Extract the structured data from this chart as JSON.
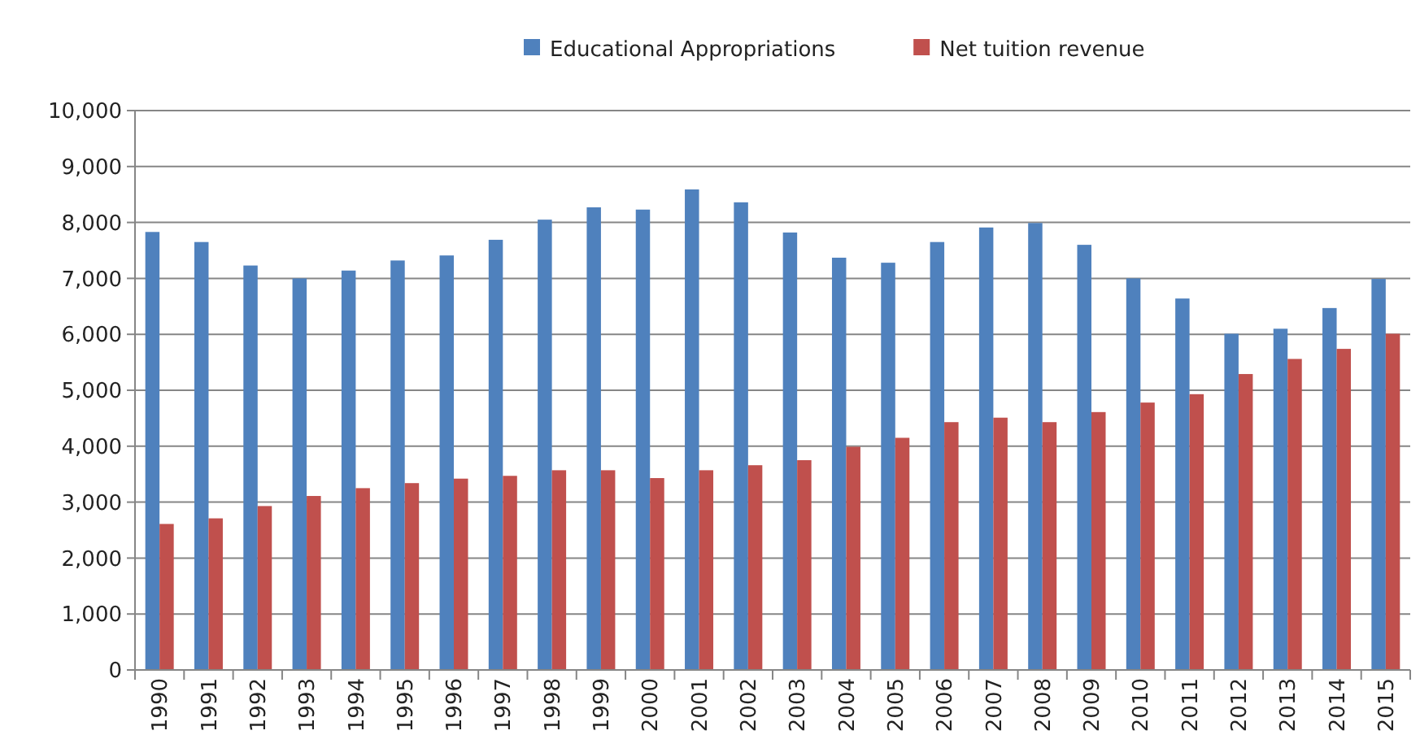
{
  "chart_data": {
    "type": "bar",
    "categories": [
      "1990",
      "1991",
      "1992",
      "1993",
      "1994",
      "1995",
      "1996",
      "1997",
      "1998",
      "1999",
      "2000",
      "2001",
      "2002",
      "2003",
      "2004",
      "2005",
      "2006",
      "2007",
      "2008",
      "2009",
      "2010",
      "2011",
      "2012",
      "2013",
      "2014",
      "2015"
    ],
    "series": [
      {
        "name": "Educational Appropriations",
        "color": "#4f81bd",
        "values": [
          7830,
          7650,
          7230,
          7000,
          7140,
          7320,
          7410,
          7690,
          8050,
          8270,
          8230,
          8590,
          8360,
          7820,
          7370,
          7280,
          7650,
          7910,
          7990,
          7600,
          7000,
          6640,
          6010,
          6100,
          6470,
          6990
        ]
      },
      {
        "name": "Net tuition revenue",
        "color": "#c0504d",
        "values": [
          2610,
          2710,
          2930,
          3110,
          3250,
          3340,
          3420,
          3470,
          3570,
          3570,
          3430,
          3570,
          3660,
          3750,
          3990,
          4150,
          4430,
          4510,
          4430,
          4610,
          4780,
          4930,
          5290,
          5560,
          5740,
          6010
        ]
      }
    ],
    "ylim": [
      0,
      10000
    ],
    "yticks": [
      {
        "value": 0,
        "label": "0"
      },
      {
        "value": 1000,
        "label": "1,000"
      },
      {
        "value": 2000,
        "label": "2,000"
      },
      {
        "value": 3000,
        "label": "3,000"
      },
      {
        "value": 4000,
        "label": "4,000"
      },
      {
        "value": 5000,
        "label": "5,000"
      },
      {
        "value": 6000,
        "label": "6,000"
      },
      {
        "value": 7000,
        "label": "7,000"
      },
      {
        "value": 8000,
        "label": "8,000"
      },
      {
        "value": 9000,
        "label": "9,000"
      },
      {
        "value": 10000,
        "label": "10,000"
      }
    ],
    "grid": "y",
    "legend": "top"
  }
}
